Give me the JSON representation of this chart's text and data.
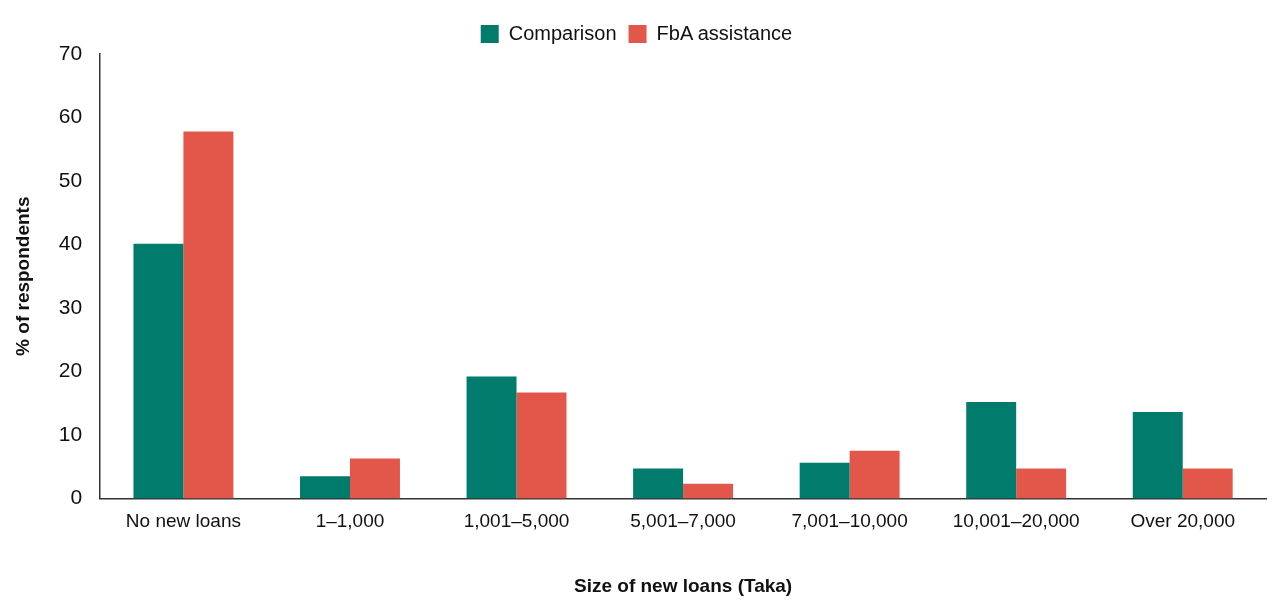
{
  "chart_data": {
    "type": "bar",
    "categories": [
      "No new loans",
      "1–1,000",
      "1,001–5,000",
      "5,001–7,000",
      "7,001–10,000",
      "10,001–20,000",
      "Over 20,000"
    ],
    "series": [
      {
        "name": "Comparison",
        "color": "#007b6c",
        "values": [
          40.1,
          3.5,
          19.2,
          4.7,
          5.6,
          15.2,
          13.6
        ]
      },
      {
        "name": "FbA assistance",
        "color": "#e3574a",
        "values": [
          57.8,
          6.3,
          16.7,
          2.3,
          7.5,
          4.7,
          4.7
        ]
      }
    ],
    "xlabel": "Size of new loans (Taka)",
    "ylabel": "% of respondents",
    "ylim": [
      0,
      70
    ],
    "yticks": [
      0,
      10,
      20,
      30,
      40,
      50,
      60,
      70
    ],
    "grid": false,
    "legend": "top"
  }
}
